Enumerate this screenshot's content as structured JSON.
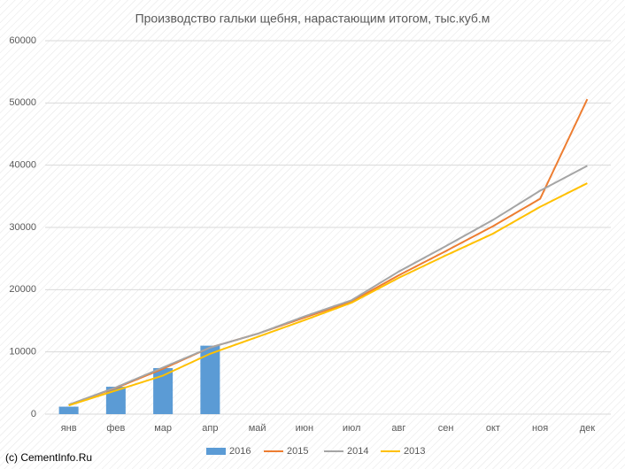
{
  "chart_data": {
    "type": "line",
    "title": "Производство гальки щебня, нарастающим итогом, тыс.куб.м",
    "watermark": "(c) CementInfo.Ru",
    "categories": [
      "янв",
      "фев",
      "мар",
      "апр",
      "май",
      "июн",
      "июл",
      "авг",
      "сен",
      "окт",
      "ноя",
      "дек"
    ],
    "series": [
      {
        "name": "2016",
        "type": "bar",
        "color": "#5b9bd5",
        "values": [
          1200,
          4400,
          7400,
          11000,
          null,
          null,
          null,
          null,
          null,
          null,
          null,
          null
        ]
      },
      {
        "name": "2015",
        "type": "line",
        "color": "#ed7d31",
        "values": [
          1500,
          4200,
          7300,
          10700,
          12900,
          15500,
          18100,
          22300,
          26200,
          30200,
          34600,
          50600
        ]
      },
      {
        "name": "2014",
        "type": "line",
        "color": "#a5a5a5",
        "values": [
          1500,
          4300,
          7500,
          10700,
          12900,
          15700,
          18300,
          22900,
          27000,
          31200,
          35900,
          39900
        ]
      },
      {
        "name": "2013",
        "type": "line",
        "color": "#ffc000",
        "values": [
          1400,
          3800,
          6200,
          9700,
          12400,
          15100,
          17900,
          21900,
          25500,
          29000,
          33300,
          37100
        ]
      }
    ],
    "ylim": [
      0,
      60000
    ],
    "yticks": [
      0,
      10000,
      20000,
      30000,
      40000,
      50000,
      60000
    ],
    "grid": true,
    "legend": "bottom"
  }
}
